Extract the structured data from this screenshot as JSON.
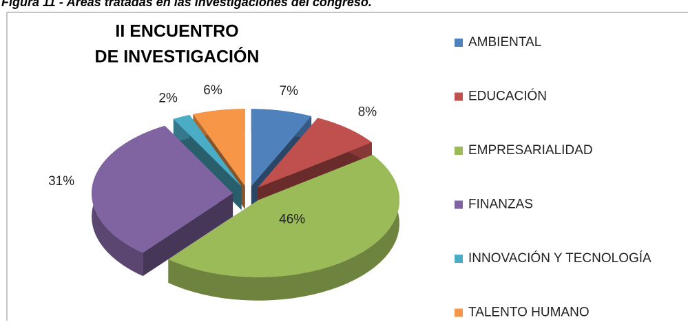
{
  "caption": "Figura 11 - Áreas tratadas en las investigaciones del congreso.",
  "chart_data": {
    "type": "pie3d",
    "title": [
      "II ENCUENTRO",
      "DE INVESTIGACIÓN"
    ],
    "categories": [
      "AMBIENTAL",
      "EDUCACIÓN",
      "EMPRESARIALIDAD",
      "FINANZAS",
      "INNOVACIÓN Y TECNOLOGÍA",
      "TALENTO HUMANO"
    ],
    "values": [
      7,
      8,
      46,
      31,
      2,
      6
    ],
    "value_labels": [
      "7%",
      "8%",
      "46%",
      "31%",
      "2%",
      "6%"
    ],
    "colors": [
      "#4f81bd",
      "#c0504d",
      "#9bbb59",
      "#8064a2",
      "#4bacc6",
      "#f79646"
    ],
    "legend": "right"
  }
}
